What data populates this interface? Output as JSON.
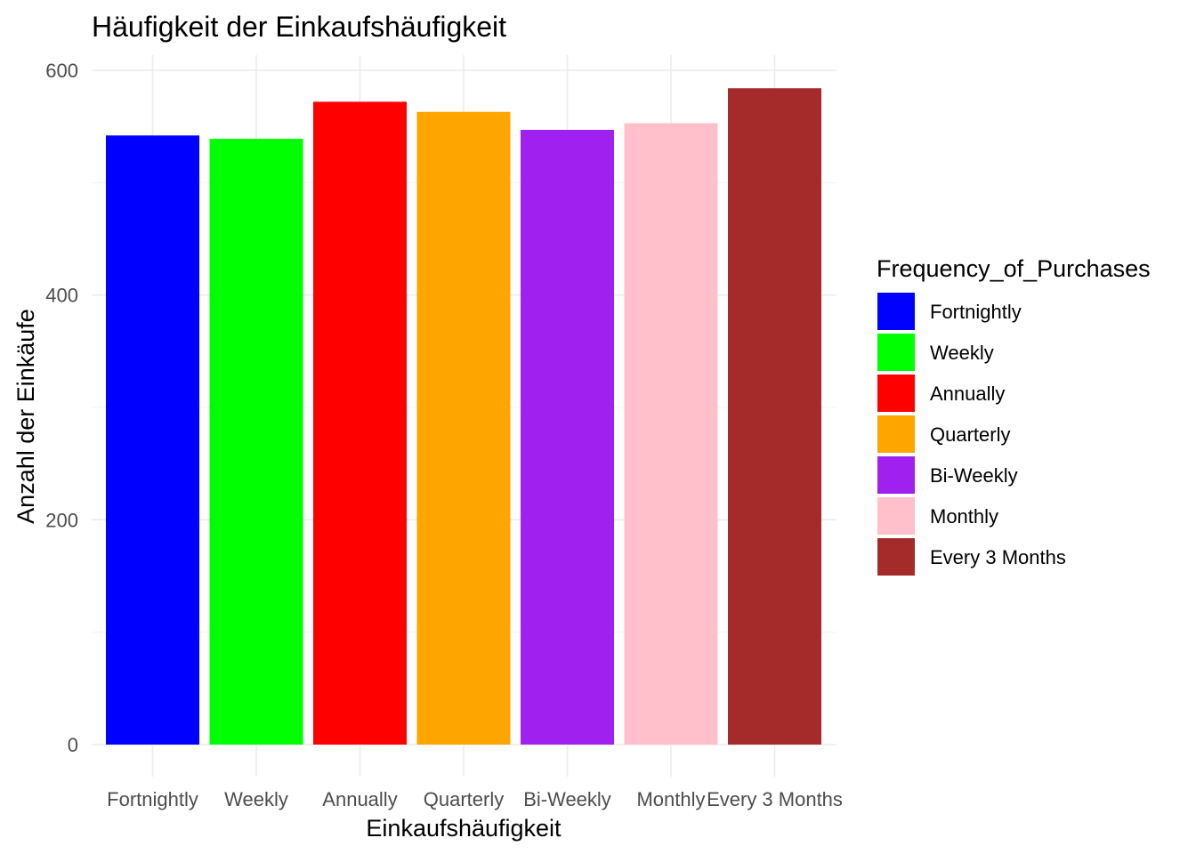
{
  "chart_data": {
    "type": "bar",
    "title": "Häufigkeit der Einkaufshäufigkeit",
    "xlabel": "Einkaufshäufigkeit",
    "ylabel": "Anzahl der Einkäufe",
    "categories": [
      "Fortnightly",
      "Weekly",
      "Annually",
      "Quarterly",
      "Bi-Weekly",
      "Monthly",
      "Every 3 Months"
    ],
    "values": [
      542,
      539,
      572,
      563,
      547,
      553,
      584
    ],
    "colors": [
      "#0000FF",
      "#00FF00",
      "#FF0000",
      "#FFA500",
      "#A020F0",
      "#FFC0CB",
      "#A52A2A"
    ],
    "ylim": [
      0,
      600
    ],
    "yticks": [
      0,
      200,
      400,
      600
    ],
    "grid": true,
    "legend": {
      "title": "Frequency_of_Purchases",
      "position": "right",
      "entries": [
        "Fortnightly",
        "Weekly",
        "Annually",
        "Quarterly",
        "Bi-Weekly",
        "Monthly",
        "Every 3 Months"
      ]
    }
  }
}
